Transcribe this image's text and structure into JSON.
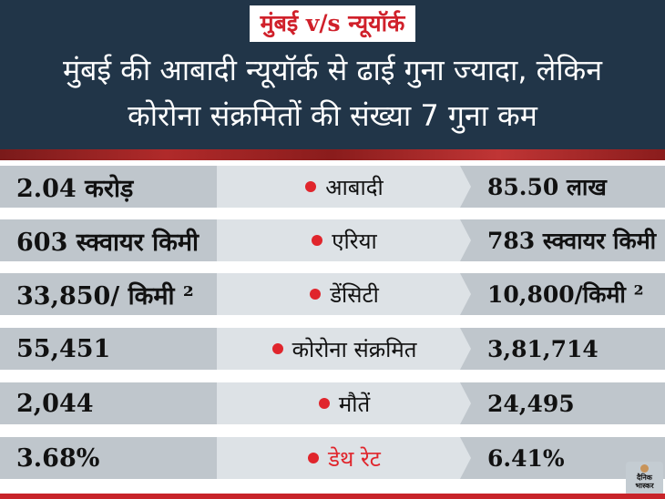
{
  "header": {
    "tag": "मुंबई v/s न्यूयॉर्क",
    "headline_line1": "मुंबई की आबादी न्यूयॉर्क से ढाई गुना ज्यादा, लेकिन",
    "headline_line2": "कोरोना संक्रमितों की संख्या 7 गुना कम"
  },
  "rows": [
    {
      "mumbai": "2.04 करोड़",
      "label": "आबादी",
      "newyork": "85.50 लाख"
    },
    {
      "mumbai": "603 स्क्वायर किमी",
      "label": "एरिया",
      "newyork": "783 स्क्वायर किमी"
    },
    {
      "mumbai": "33,850/ किमी ²",
      "label": "डेंसिटी",
      "newyork": "10,800/किमी ²"
    },
    {
      "mumbai": "55,451",
      "label": "कोरोना संक्रमित",
      "newyork": "3,81,714"
    },
    {
      "mumbai": "2,044",
      "label": "मौतें",
      "newyork": "24,495"
    },
    {
      "mumbai": "3.68%",
      "label": "डेथ रेट",
      "newyork": "6.41%"
    }
  ],
  "logo": {
    "line1": "दैनिक",
    "line2": "भास्कर"
  },
  "colors": {
    "header": "#213548",
    "accent": "#e0252c"
  }
}
